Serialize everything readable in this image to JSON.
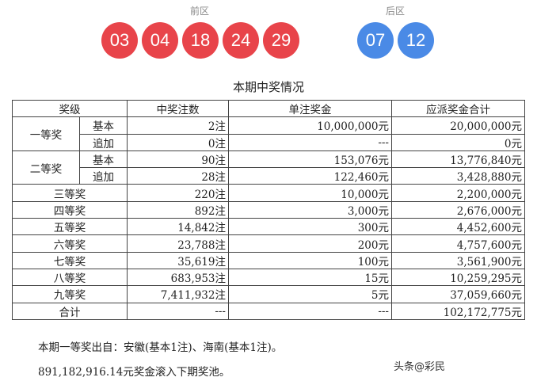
{
  "front_label": "前区",
  "back_label": "后区",
  "front_balls": [
    "03",
    "04",
    "18",
    "24",
    "29"
  ],
  "back_balls": [
    "07",
    "12"
  ],
  "colors": {
    "front": "#e8444a",
    "back": "#4a8ae6"
  },
  "table_title": "本期中奖情况",
  "headers": {
    "level": "奖级",
    "count": "中奖注数",
    "unit_prize": "单注奖金",
    "total": "应派奖金合计"
  },
  "tier1": {
    "label": "一等奖",
    "basic": {
      "sub": "基本",
      "count": "2注",
      "unit": "10,000,000元",
      "total": "20,000,000元"
    },
    "extra": {
      "sub": "追加",
      "count": "0注",
      "unit": "---",
      "total": "0元"
    }
  },
  "tier2": {
    "label": "二等奖",
    "basic": {
      "sub": "基本",
      "count": "90注",
      "unit": "153,076元",
      "total": "13,776,840元"
    },
    "extra": {
      "sub": "追加",
      "count": "28注",
      "unit": "122,460元",
      "total": "3,428,880元"
    }
  },
  "rows": [
    {
      "level": "三等奖",
      "count": "220注",
      "unit": "10,000元",
      "total": "2,200,000元"
    },
    {
      "level": "四等奖",
      "count": "892注",
      "unit": "3,000元",
      "total": "2,676,000元"
    },
    {
      "level": "五等奖",
      "count": "14,842注",
      "unit": "300元",
      "total": "4,452,600元"
    },
    {
      "level": "六等奖",
      "count": "23,788注",
      "unit": "200元",
      "total": "4,757,600元"
    },
    {
      "level": "七等奖",
      "count": "35,619注",
      "unit": "100元",
      "total": "3,561,900元"
    },
    {
      "level": "八等奖",
      "count": "683,953注",
      "unit": "15元",
      "total": "10,259,295元"
    },
    {
      "level": "九等奖",
      "count": "7,411,932注",
      "unit": "5元",
      "total": "37,059,660元"
    }
  ],
  "sum": {
    "label": "合计",
    "count": "---",
    "unit": "---",
    "total": "102,172,775元"
  },
  "footnote1": "本期一等奖出自：安徽(基本1注)、海南(基本1注)。",
  "footnote2": "891,182,916.14元奖金滚入下期奖池。",
  "watermark": "头条@彩民"
}
